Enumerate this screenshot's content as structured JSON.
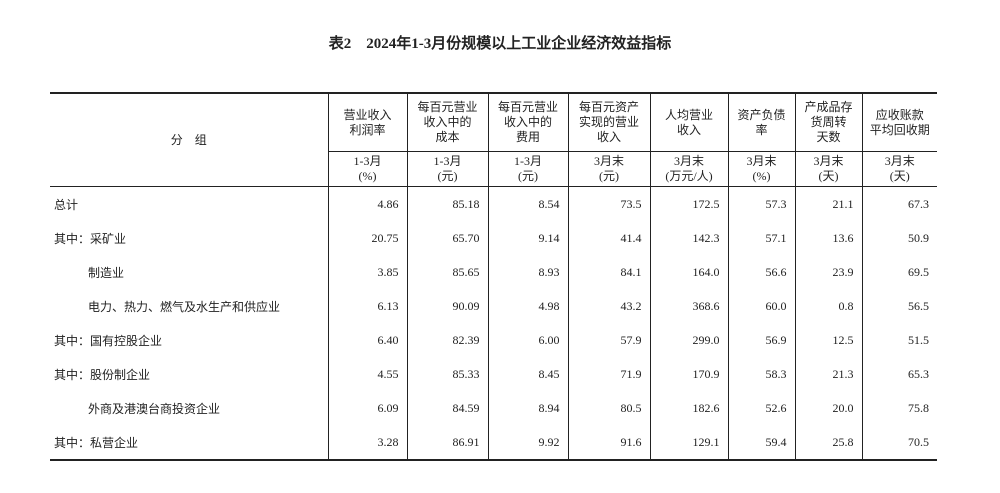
{
  "title": "表2　2024年1-3月份规模以上工业企业经济效益指标",
  "table": {
    "group_header": "分　组",
    "columns": [
      {
        "heading": [
          "营业收入",
          "利润率"
        ],
        "unit": [
          "1-3月",
          "(%)"
        ]
      },
      {
        "heading": [
          "每百元营业",
          "收入中的",
          "成本"
        ],
        "unit": [
          "1-3月",
          "(元)"
        ]
      },
      {
        "heading": [
          "每百元营业",
          "收入中的",
          "费用"
        ],
        "unit": [
          "1-3月",
          "(元)"
        ]
      },
      {
        "heading": [
          "每百元资产",
          "实现的营业",
          "收入"
        ],
        "unit": [
          "3月末",
          "(元)"
        ]
      },
      {
        "heading": [
          "人均营业",
          "收入"
        ],
        "unit": [
          "3月末",
          "(万元/人)"
        ]
      },
      {
        "heading": [
          "资产负债",
          "率"
        ],
        "unit": [
          "3月末",
          "(%)"
        ]
      },
      {
        "heading": [
          "产成品存",
          "货周转",
          "天数"
        ],
        "unit": [
          "3月末",
          "(天)"
        ]
      },
      {
        "heading": [
          "应收账款",
          "平均回收期"
        ],
        "unit": [
          "3月末",
          "(天)"
        ]
      }
    ],
    "rows": [
      {
        "label": "总计",
        "values": [
          "4.86",
          "85.18",
          "8.54",
          "73.5",
          "172.5",
          "57.3",
          "21.1",
          "67.3"
        ]
      },
      {
        "label": "其中：采矿业",
        "values": [
          "20.75",
          "65.70",
          "9.14",
          "41.4",
          "142.3",
          "57.1",
          "13.6",
          "50.9"
        ]
      },
      {
        "label": "制造业",
        "values": [
          "3.85",
          "85.65",
          "8.93",
          "84.1",
          "164.0",
          "56.6",
          "23.9",
          "69.5"
        ]
      },
      {
        "label": "电力、热力、燃气及水生产和供应业",
        "values": [
          "6.13",
          "90.09",
          "4.98",
          "43.2",
          "368.6",
          "60.0",
          "0.8",
          "56.5"
        ]
      },
      {
        "label": "其中：国有控股企业",
        "values": [
          "6.40",
          "82.39",
          "6.00",
          "57.9",
          "299.0",
          "56.9",
          "12.5",
          "51.5"
        ]
      },
      {
        "label": "其中：股份制企业",
        "values": [
          "4.55",
          "85.33",
          "8.45",
          "71.9",
          "170.9",
          "58.3",
          "21.3",
          "65.3"
        ]
      },
      {
        "label": "外商及港澳台商投资企业",
        "values": [
          "6.09",
          "84.59",
          "8.94",
          "80.5",
          "182.6",
          "52.6",
          "20.0",
          "75.8"
        ]
      },
      {
        "label": "其中：私营企业",
        "values": [
          "3.28",
          "86.91",
          "9.92",
          "91.6",
          "129.1",
          "59.4",
          "25.8",
          "70.5"
        ]
      }
    ]
  }
}
